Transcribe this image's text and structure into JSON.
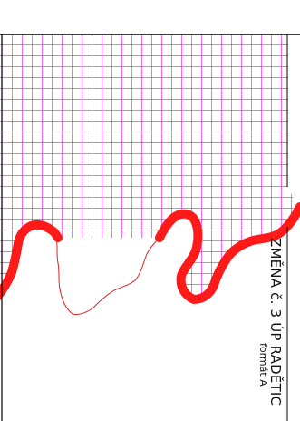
{
  "map": {
    "title_text": "ZMĚNA č. 3 ÚP RADĚTIC",
    "format_text": "formát A",
    "colors": {
      "hatch": "#ff00ff",
      "boundary": "#ff1a1a",
      "thin_line": "#e02020",
      "frame": "#000000",
      "background": "#ffffff"
    },
    "layers": {
      "hatch_area": "magenta-grid-hatch",
      "thick_boundary": "red-thick-boundary-line",
      "thin_boundary": "red-thin-boundary-line",
      "frame": "sheet-frame"
    }
  }
}
